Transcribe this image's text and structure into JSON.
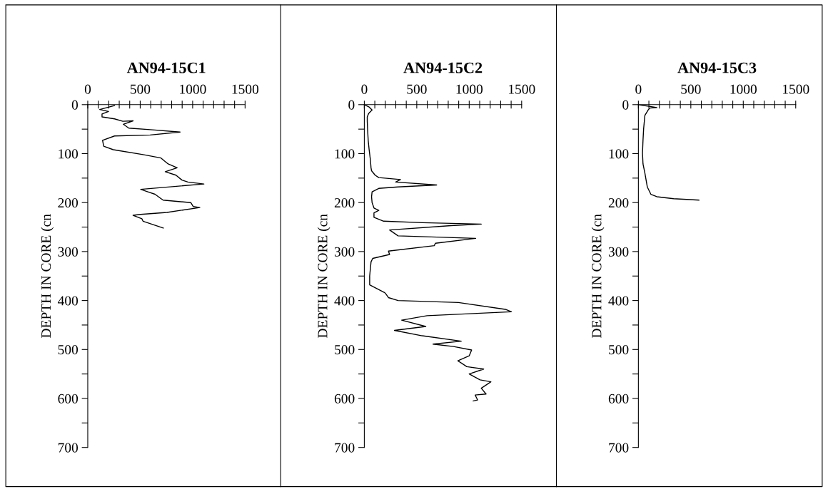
{
  "chart_data": [
    {
      "type": "line",
      "title": "AN94-15C1",
      "ylabel": "DEPTH IN CORE (cn",
      "xlim": [
        0,
        1500
      ],
      "ylim": [
        700,
        0
      ],
      "xticks": [
        0,
        {
          "value": 100,
          "label": null
        },
        {
          "value": 200,
          "label": null
        },
        {
          "value": 300,
          "label": null
        },
        {
          "value": 400,
          "label": null
        },
        500,
        {
          "value": 600,
          "label": null
        },
        {
          "value": 700,
          "label": null
        },
        {
          "value": 800,
          "label": null
        },
        {
          "value": 900,
          "label": null
        },
        1000,
        {
          "value": 1100,
          "label": null
        },
        {
          "value": 1200,
          "label": null
        },
        {
          "value": 1300,
          "label": null
        },
        {
          "value": 1400,
          "label": null
        },
        1500
      ],
      "yticks": [
        0,
        {
          "value": 50,
          "label": null
        },
        100,
        {
          "value": 150,
          "label": null
        },
        200,
        {
          "value": 250,
          "label": null
        },
        300,
        {
          "value": 350,
          "label": null
        },
        400,
        {
          "value": 450,
          "label": null
        },
        500,
        {
          "value": 550,
          "label": null
        },
        600,
        {
          "value": 650,
          "label": null
        },
        700
      ],
      "series": [
        {
          "color": "#000000",
          "x": [
            255,
            114,
            198,
            136,
            136,
            255,
            334,
            432,
            339,
            391,
            595,
            880,
            595,
            255,
            141,
            152,
            243,
            527,
            698,
            766,
            852,
            739,
            841,
            898,
            955,
            1107,
            505,
            573,
            641,
            718,
            982,
            1005,
            1068,
            755,
            505,
            432,
            516,
            527,
            720
          ],
          "values": [
            2,
            10,
            14,
            19,
            25,
            29,
            34,
            33,
            40,
            48,
            51,
            56,
            62,
            64,
            73,
            85,
            92,
            102,
            109,
            121,
            129,
            137,
            144,
            154,
            158,
            162,
            173,
            178,
            183,
            195,
            200,
            208,
            210,
            220,
            224,
            226,
            233,
            238,
            252
          ]
        }
      ]
    },
    {
      "type": "line",
      "title": "AN94-15C2",
      "ylabel": "DEPTH IN CORE (cn",
      "xlim": [
        0,
        1500
      ],
      "ylim": [
        700,
        0
      ],
      "xticks": [
        0,
        {
          "value": 100,
          "label": null
        },
        {
          "value": 200,
          "label": null
        },
        {
          "value": 300,
          "label": null
        },
        {
          "value": 400,
          "label": null
        },
        500,
        {
          "value": 600,
          "label": null
        },
        {
          "value": 700,
          "label": null
        },
        {
          "value": 800,
          "label": null
        },
        {
          "value": 900,
          "label": null
        },
        1000,
        {
          "value": 1100,
          "label": null
        },
        {
          "value": 1200,
          "label": null
        },
        {
          "value": 1300,
          "label": null
        },
        {
          "value": 1400,
          "label": null
        },
        1500
      ],
      "yticks": [
        0,
        {
          "value": 50,
          "label": null
        },
        100,
        {
          "value": 150,
          "label": null
        },
        200,
        {
          "value": 250,
          "label": null
        },
        300,
        {
          "value": 350,
          "label": null
        },
        400,
        {
          "value": 450,
          "label": null
        },
        500,
        {
          "value": 550,
          "label": null
        },
        600,
        {
          "value": 650,
          "label": null
        },
        700
      ],
      "series": [
        {
          "color": "#000000",
          "x": [
            0,
            46,
            74,
            41,
            28,
            28,
            32,
            37,
            46,
            57,
            64,
            69,
            103,
            138,
            345,
            299,
            690,
            322,
            138,
            74,
            69,
            74,
            92,
            138,
            92,
            92,
            184,
            552,
            1115,
            828,
            241,
            322,
            1062,
            678,
            667,
            230,
            241,
            80,
            64,
            51,
            51,
            195,
            207,
            230,
            322,
            897,
            1345,
            1402,
            598,
            356,
            586,
            287,
            552,
            924,
            655,
            851,
            1023,
            1000,
            892,
            977,
            1138,
            1000,
            1103,
            1207,
            1115,
            1161,
            1057,
            1080,
            1039
          ],
          "values": [
            0,
            5,
            11,
            18,
            25,
            34,
            54,
            73,
            92,
            111,
            129,
            135,
            144,
            149,
            153,
            158,
            164,
            168,
            171,
            178,
            188,
            200,
            211,
            216,
            221,
            230,
            238,
            241,
            244,
            247,
            256,
            268,
            273,
            283,
            288,
            299,
            306,
            314,
            321,
            350,
            368,
            384,
            387,
            394,
            400,
            404,
            418,
            423,
            431,
            440,
            453,
            461,
            472,
            483,
            489,
            494,
            501,
            513,
            523,
            535,
            540,
            550,
            562,
            566,
            579,
            591,
            593,
            603,
            605
          ]
        }
      ]
    },
    {
      "type": "line",
      "title": "AN94-15C3",
      "ylabel": "DEPTH IN CORE (cn",
      "xlim": [
        0,
        1500
      ],
      "ylim": [
        700,
        0
      ],
      "xticks": [
        0,
        {
          "value": 100,
          "label": null
        },
        {
          "value": 200,
          "label": null
        },
        {
          "value": 300,
          "label": null
        },
        {
          "value": 400,
          "label": null
        },
        500,
        {
          "value": 600,
          "label": null
        },
        {
          "value": 700,
          "label": null
        },
        {
          "value": 800,
          "label": null
        },
        {
          "value": 900,
          "label": null
        },
        1000,
        {
          "value": 1100,
          "label": null
        },
        {
          "value": 1200,
          "label": null
        },
        {
          "value": 1300,
          "label": null
        },
        {
          "value": 1400,
          "label": null
        },
        1500
      ],
      "yticks": [
        0,
        {
          "value": 50,
          "label": null
        },
        100,
        {
          "value": 150,
          "label": null
        },
        200,
        {
          "value": 250,
          "label": null
        },
        300,
        {
          "value": 350,
          "label": null
        },
        400,
        {
          "value": 450,
          "label": null
        },
        500,
        {
          "value": 550,
          "label": null
        },
        600,
        {
          "value": 650,
          "label": null
        },
        700
      ],
      "series": [
        {
          "color": "#000000",
          "x": [
            0,
            176,
            108,
            96,
            62,
            50,
            44,
            39,
            44,
            62,
            85,
            119,
            176,
            336,
            577
          ],
          "values": [
            0,
            6,
            7,
            10,
            22,
            49,
            73,
            99,
            121,
            140,
            168,
            183,
            188,
            192,
            195
          ]
        }
      ]
    }
  ]
}
